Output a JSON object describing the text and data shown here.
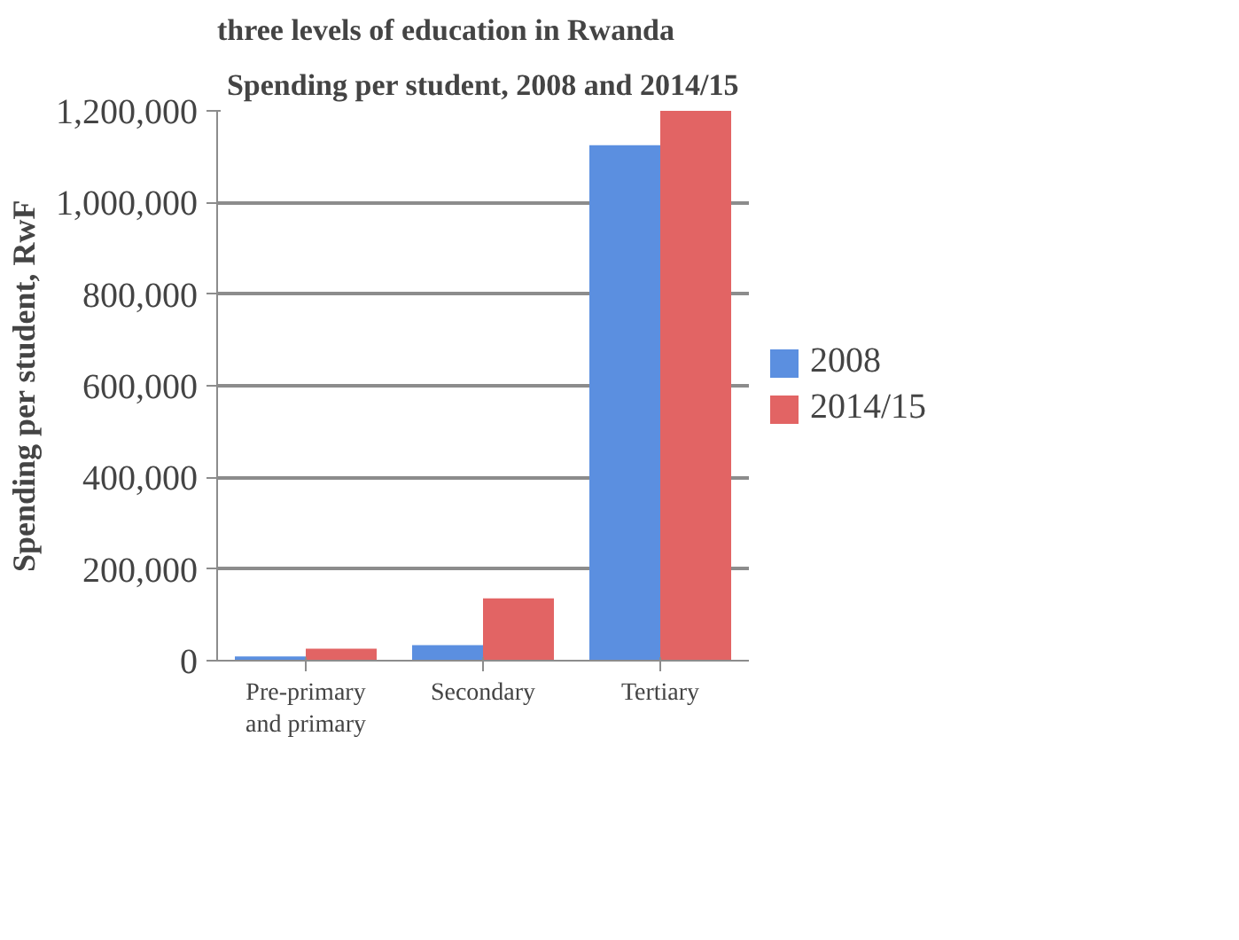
{
  "chart_data": {
    "type": "bar",
    "title": "Spending per student, 2008 and 2014/15",
    "ylabel": "Spending per student, RwF",
    "annotations": [
      "three levels of education in Rwanda"
    ],
    "categories": [
      "Pre-primary\nand primary",
      "Secondary",
      "Tertiary"
    ],
    "series": [
      {
        "name": "2008",
        "color": "#5b8fe0",
        "values": [
          9000,
          34000,
          1125000
        ]
      },
      {
        "name": "2014/15",
        "color": "#e26464",
        "values": [
          26000,
          136000,
          1200000
        ]
      }
    ],
    "ylim": [
      0,
      1200000
    ],
    "yticks": [
      {
        "value": 0,
        "label": "0"
      },
      {
        "value": 200000,
        "label": "200,000"
      },
      {
        "value": 400000,
        "label": "400,000"
      },
      {
        "value": 600000,
        "label": "600,000"
      },
      {
        "value": 800000,
        "label": "800,000"
      },
      {
        "value": 1000000,
        "label": "1,000,000"
      },
      {
        "value": 1200000,
        "label": "1,200,000"
      }
    ],
    "grid": "y",
    "legend": "right"
  }
}
